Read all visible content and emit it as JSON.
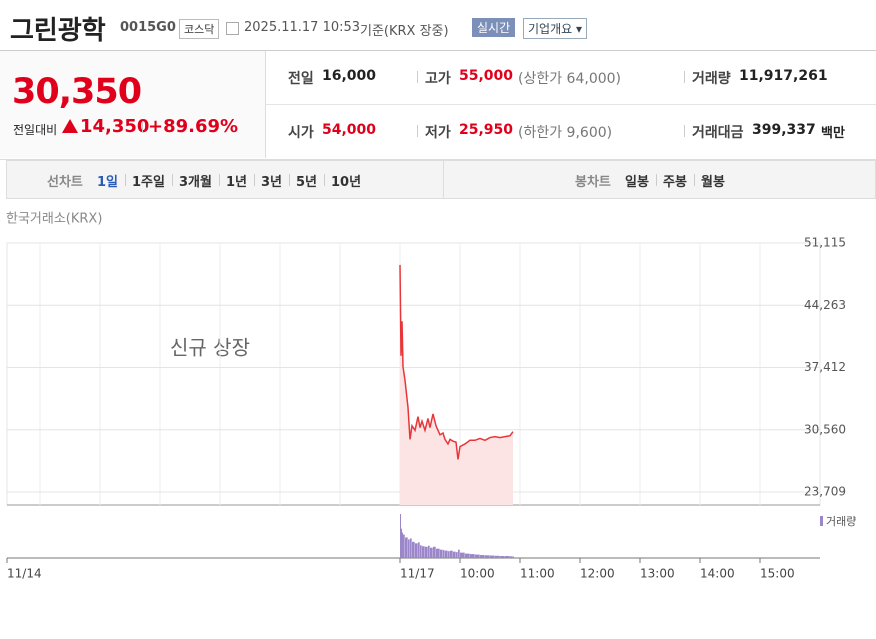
{
  "header": {
    "name": "그린광학",
    "code": "0015G0",
    "market": "코스닥",
    "datetime": "2025.11.17 10:53",
    "basis": "기준(KRX 장중)",
    "realtime": "실시간",
    "company": "기업개요"
  },
  "price": {
    "current": "30,350",
    "change_label": "전일대비",
    "change": "14,350",
    "rate": "+89.69%"
  },
  "info": [
    {
      "label": "전일",
      "value": "16,000"
    },
    {
      "label": "고가",
      "value": "55,000",
      "note": "(상한가 64,000)"
    },
    {
      "label": "거래량",
      "value": "11,917,261"
    },
    {
      "label": "시가",
      "value": "54,000"
    },
    {
      "label": "저가",
      "value": "25,950",
      "note": "(하한가 9,600)"
    },
    {
      "label": "거래대금",
      "value": "399,337",
      "unit": "백만"
    }
  ],
  "tabs": {
    "line_label": "선차트",
    "line_tabs": [
      "1일",
      "1주일",
      "3개월",
      "1년",
      "3년",
      "5년",
      "10년"
    ],
    "candle_label": "봉차트",
    "candle_tabs": [
      "일봉",
      "주봉",
      "월봉"
    ]
  },
  "chart_data": {
    "type": "line",
    "source": "한국거래소(KRX)",
    "annotation": "신규 상장",
    "x": [
      "09:00",
      "09:01",
      "09:02",
      "09:03",
      "09:05",
      "09:08",
      "09:10",
      "09:12",
      "09:15",
      "09:18",
      "09:20",
      "09:22",
      "09:25",
      "09:28",
      "09:30",
      "09:33",
      "09:36",
      "09:40",
      "09:43",
      "09:45",
      "09:48",
      "09:50",
      "09:53",
      "09:56",
      "09:58",
      "10:00",
      "10:05",
      "10:10",
      "10:15",
      "10:20",
      "10:25",
      "10:30",
      "10:35",
      "10:40",
      "10:45",
      "10:50",
      "10:53"
    ],
    "values": [
      48700,
      38700,
      42500,
      37500,
      36000,
      33000,
      29500,
      31000,
      30500,
      32000,
      30800,
      31500,
      30500,
      31800,
      30800,
      32300,
      31000,
      30000,
      30200,
      29500,
      29000,
      29500,
      29300,
      29200,
      27300,
      28700,
      29000,
      29400,
      29400,
      29600,
      29400,
      29700,
      29800,
      29700,
      29800,
      29900,
      30350
    ],
    "color": "#e8353a",
    "area_color": "#fde4e4",
    "volume": {
      "name": "거래량",
      "color": "#9a86c9",
      "values": [
        900000,
        600000,
        520000,
        480000,
        420000,
        380000,
        400000,
        330000,
        300000,
        320000,
        260000,
        240000,
        230000,
        250000,
        210000,
        230000,
        190000,
        170000,
        160000,
        150000,
        140000,
        150000,
        130000,
        120000,
        170000,
        110000,
        90000,
        80000,
        70000,
        60000,
        55000,
        50000,
        45000,
        40000,
        40000,
        35000,
        30000
      ]
    },
    "ylim": [
      23709,
      51115
    ],
    "yticks": [
      {
        "value": 23709,
        "label": "23,709"
      },
      {
        "value": 30560,
        "label": "30,560"
      },
      {
        "value": 37412,
        "label": "37,412"
      },
      {
        "value": 44263,
        "label": "44,263"
      },
      {
        "value": 51115,
        "label": "51,115"
      }
    ],
    "xticks": [
      "11/14",
      "11/17",
      "10:00",
      "11:00",
      "12:00",
      "13:00",
      "14:00",
      "15:00"
    ],
    "grid": true
  }
}
